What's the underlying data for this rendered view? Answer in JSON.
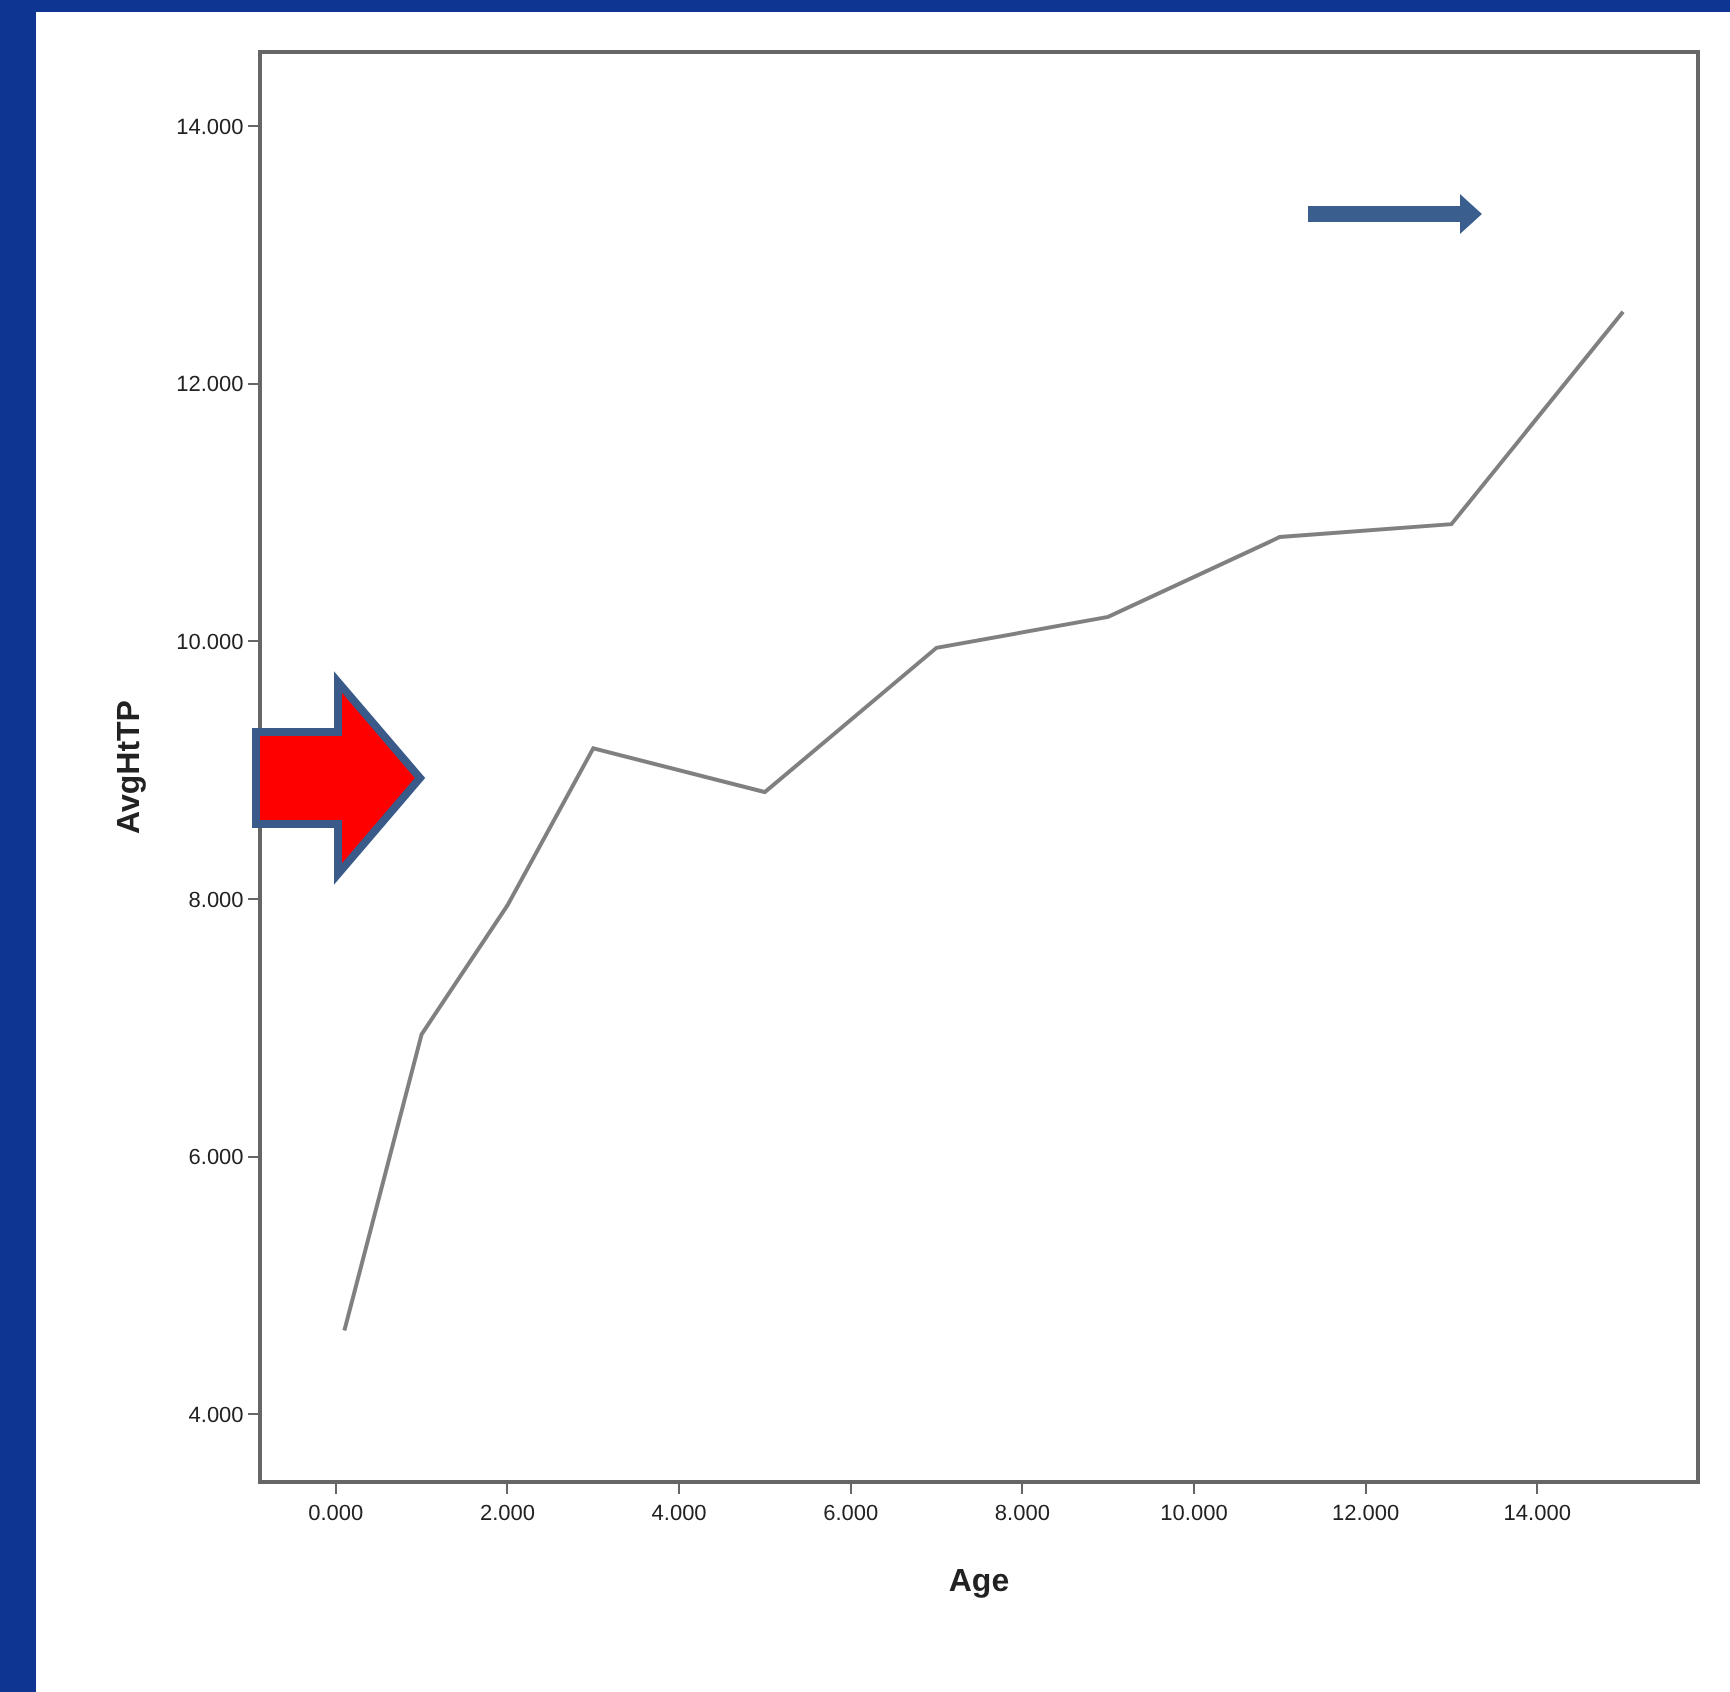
{
  "chart_data": {
    "type": "line",
    "xlabel": "Age",
    "ylabel": "AvgHtTP",
    "x": [
      0.1,
      1,
      2,
      3,
      5,
      7,
      9,
      11,
      13,
      15
    ],
    "series": [
      {
        "color": "#808080",
        "values": [
          4.65,
          6.95,
          7.95,
          9.17,
          8.83,
          9.95,
          10.19,
          10.81,
          10.91,
          12.56
        ]
      }
    ],
    "xlim": [
      -0.86,
      15.85
    ],
    "ylim": [
      3.49,
      14.56
    ],
    "xticks": [
      {
        "value": 0,
        "label": "0.000"
      },
      {
        "value": 2,
        "label": "2.000"
      },
      {
        "value": 4,
        "label": "4.000"
      },
      {
        "value": 6,
        "label": "6.000"
      },
      {
        "value": 8,
        "label": "8.000"
      },
      {
        "value": 10,
        "label": "10.000"
      },
      {
        "value": 12,
        "label": "12.000"
      },
      {
        "value": 14,
        "label": "14.000"
      }
    ],
    "yticks": [
      {
        "value": 4,
        "label": "4.000"
      },
      {
        "value": 6,
        "label": "6.000"
      },
      {
        "value": 8,
        "label": "8.000"
      },
      {
        "value": 10,
        "label": "10.000"
      },
      {
        "value": 12,
        "label": "12.000"
      },
      {
        "value": 14,
        "label": "14.000"
      }
    ],
    "grid": false,
    "marker": "none",
    "line_style": "solid"
  }
}
